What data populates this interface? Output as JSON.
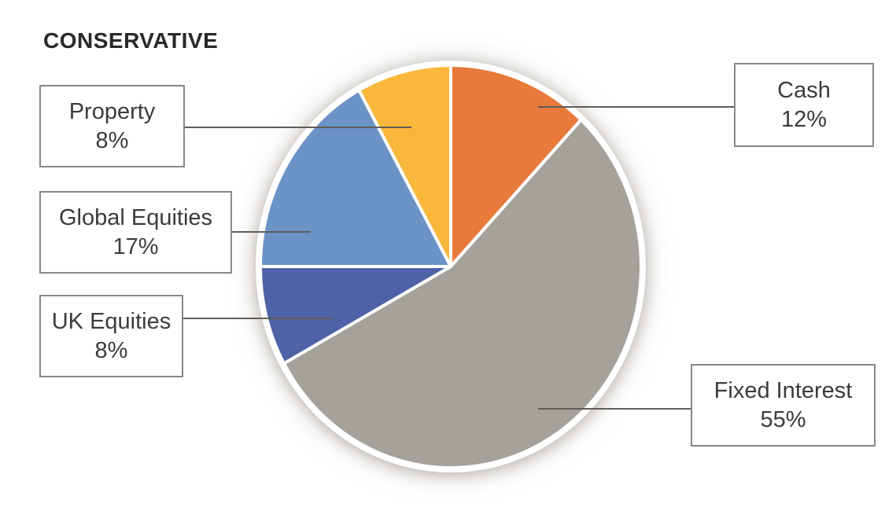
{
  "title": "CONSERVATIVE",
  "chart_data": {
    "type": "pie",
    "title": "CONSERVATIVE",
    "start_angle_deg": 0,
    "direction": "clockwise",
    "total": 100,
    "legend_position": "callout-boxes",
    "slice_separator_color": "#ffffff",
    "slices": [
      {
        "label": "Cash",
        "value": 12,
        "pct_label": "12%",
        "color": "#E87A3C"
      },
      {
        "label": "Fixed Interest",
        "value": 55,
        "pct_label": "55%",
        "color": "#A5A19B"
      },
      {
        "label": "UK Equities",
        "value": 8,
        "pct_label": "8%",
        "color": "#4E63A7"
      },
      {
        "label": "Global Equities",
        "value": 17,
        "pct_label": "17%",
        "color": "#6B93C6"
      },
      {
        "label": "Property",
        "value": 8,
        "pct_label": "8%",
        "color": "#F8B83C"
      }
    ]
  }
}
